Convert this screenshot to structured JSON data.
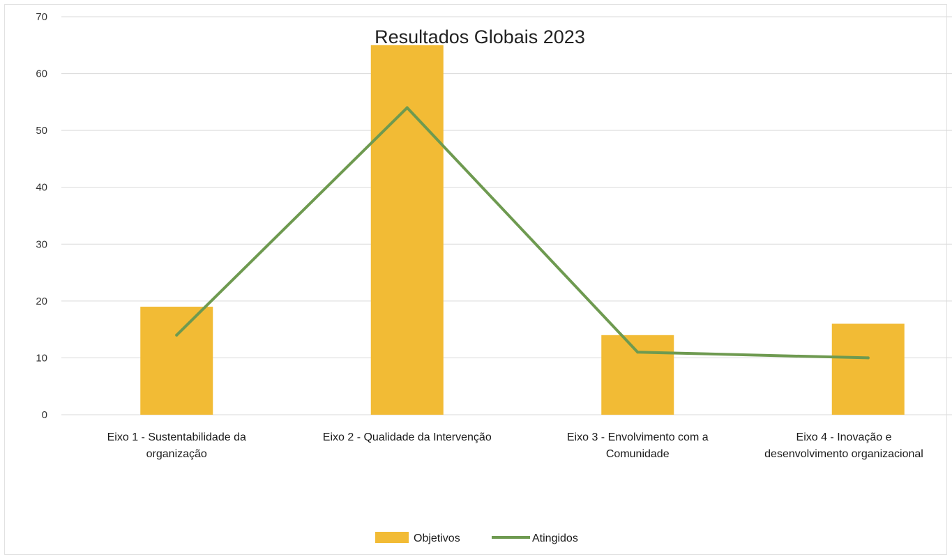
{
  "chart_data": {
    "type": "bar",
    "title": "Resultados Globais 2023",
    "categories": [
      [
        "Eixo 1 - Sustentabilidade da",
        "organização"
      ],
      [
        "Eixo 2 - Qualidade da Intervenção"
      ],
      [
        "Eixo 3 - Envolvimento com a",
        "Comunidade"
      ],
      [
        "Eixo 4 - Inovação e",
        "desenvolvimento organizacional"
      ]
    ],
    "series": [
      {
        "name": "Objetivos",
        "kind": "bar",
        "color": "#f2bb35",
        "values": [
          19,
          65,
          14,
          16
        ]
      },
      {
        "name": "Atingidos",
        "kind": "line",
        "color": "#6e9a50",
        "values": [
          14,
          54,
          11,
          10
        ]
      }
    ],
    "ylim": [
      0,
      70
    ],
    "yticks": [
      0,
      10,
      20,
      30,
      40,
      50,
      60,
      70
    ],
    "grid": true,
    "legend": "bottom-center",
    "gridColor": "#d9d9d9"
  }
}
